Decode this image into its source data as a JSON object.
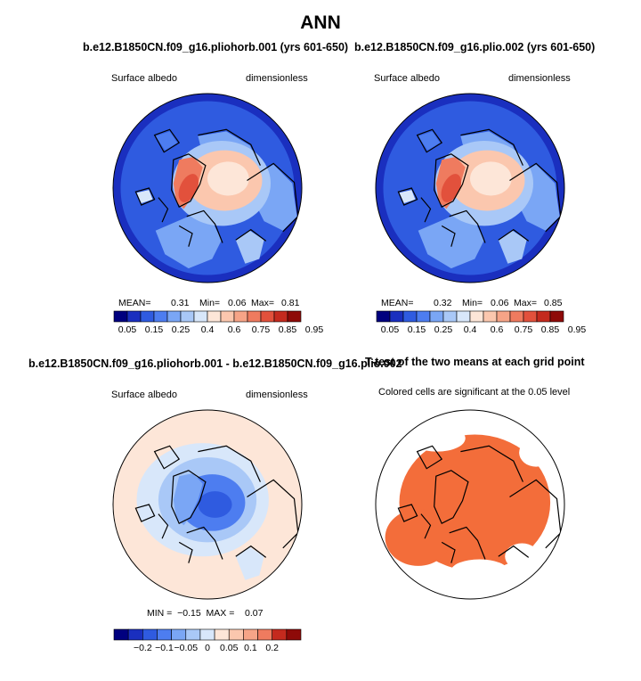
{
  "main_title": "ANN",
  "colors": {
    "land_ocean_scale": [
      "#00007f",
      "#1a2fbf",
      "#2f5be0",
      "#4d7df0",
      "#7aa6f5",
      "#a9c8f7",
      "#d8e7fa",
      "#fde6d8",
      "#fbc7ae",
      "#f6a487",
      "#ef7b5f",
      "#e2513c",
      "#c42a1e",
      "#8e0a08"
    ],
    "diff_scale": [
      "#00007f",
      "#1a2fbf",
      "#2f5be0",
      "#4d7df0",
      "#7aa6f5",
      "#a9c8f7",
      "#d8e7fa",
      "#fde6d8",
      "#fbc7ae",
      "#f6a487",
      "#ef7b5f",
      "#c42a1e",
      "#8e0a08"
    ],
    "significance": "#f36d3a",
    "coast": "#000000"
  },
  "panels": [
    {
      "title": "b.e12.B1850CN.f09_g16.pliohorb.001 (yrs 601-650)",
      "left_label": "Surface albedo",
      "right_label": "dimensionless",
      "stats": {
        "mean_label": "MEAN=",
        "mean": "0.31",
        "min_label": "Min=",
        "min": "0.06",
        "max_label": "Max=",
        "max": "0.81"
      },
      "colorbar_labels": [
        "0.05",
        "0.15",
        "0.25",
        "0.4",
        "0.6",
        "0.75",
        "0.85",
        "0.95"
      ]
    },
    {
      "title": "b.e12.B1850CN.f09_g16.plio.002 (yrs 601-650)",
      "left_label": "Surface albedo",
      "right_label": "dimensionless",
      "stats": {
        "mean_label": "MEAN=",
        "mean": "0.32",
        "min_label": "Min=",
        "min": "0.06",
        "max_label": "Max=",
        "max": "0.85"
      },
      "colorbar_labels": [
        "0.05",
        "0.15",
        "0.25",
        "0.4",
        "0.6",
        "0.75",
        "0.85",
        "0.95"
      ]
    },
    {
      "title": "b.e12.B1850CN.f09_g16.pliohorb.001 - b.e12.B1850CN.f09_g16.plio.002",
      "left_label": "Surface albedo",
      "right_label": "dimensionless",
      "stats_text": "MIN =  −0.15  MAX =    0.07",
      "colorbar_labels": [
        "−0.2",
        "−0.1",
        "−0.05",
        "0",
        "0.05",
        "0.1",
        "0.2"
      ]
    },
    {
      "title": "T-test of the two means at each grid point",
      "subtitle": "Colored cells are significant at the 0.05 level"
    }
  ],
  "chart_data": [
    {
      "type": "heatmap",
      "projection": "north-polar-stereographic",
      "variable": "Surface albedo",
      "units": "dimensionless",
      "case": "b.e12.B1850CN.f09_g16.pliohorb.001 (yrs 601-650)",
      "mean": 0.31,
      "min": 0.06,
      "max": 0.81,
      "levels": [
        0.05,
        0.1,
        0.15,
        0.2,
        0.25,
        0.3,
        0.4,
        0.5,
        0.6,
        0.7,
        0.75,
        0.8,
        0.85,
        0.9,
        0.95
      ]
    },
    {
      "type": "heatmap",
      "projection": "north-polar-stereographic",
      "variable": "Surface albedo",
      "units": "dimensionless",
      "case": "b.e12.B1850CN.f09_g16.plio.002 (yrs 601-650)",
      "mean": 0.32,
      "min": 0.06,
      "max": 0.85,
      "levels": [
        0.05,
        0.1,
        0.15,
        0.2,
        0.25,
        0.3,
        0.4,
        0.5,
        0.6,
        0.7,
        0.75,
        0.8,
        0.85,
        0.9,
        0.95
      ]
    },
    {
      "type": "heatmap",
      "projection": "north-polar-stereographic",
      "variable": "Surface albedo difference",
      "min": -0.15,
      "max": 0.07,
      "levels": [
        -0.2,
        -0.15,
        -0.1,
        -0.07,
        -0.05,
        -0.03,
        0,
        0.03,
        0.05,
        0.07,
        0.1,
        0.15,
        0.2
      ]
    },
    {
      "type": "heatmap",
      "projection": "north-polar-stereographic",
      "variable": "T-test significance (p < 0.05)"
    }
  ]
}
